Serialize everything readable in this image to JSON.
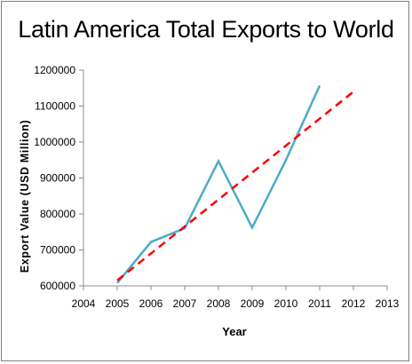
{
  "chart_data": {
    "type": "line",
    "title": "Latin America Total Exports to World",
    "xlabel": "Year",
    "ylabel": "Export Value (USD Million)",
    "xlim": [
      2004,
      2013
    ],
    "ylim": [
      600000,
      1200000
    ],
    "x_ticks": [
      "2004",
      "2005",
      "2006",
      "2007",
      "2008",
      "2009",
      "2010",
      "2011",
      "2012",
      "2013"
    ],
    "y_ticks": [
      "600000",
      "700000",
      "800000",
      "900000",
      "1000000",
      "1100000",
      "1200000"
    ],
    "grid": false,
    "legend": "none",
    "series": [
      {
        "kind": "data",
        "color": "#4bacc6",
        "x": [
          2005,
          2006,
          2007,
          2008,
          2009,
          2010,
          2011
        ],
        "values": [
          608000,
          722000,
          760000,
          947000,
          762000,
          950000,
          1157000
        ]
      },
      {
        "kind": "trendline",
        "style": "dashed",
        "color": "#ff0000",
        "x": [
          2005,
          2012
        ],
        "values": [
          615000,
          1140000
        ]
      }
    ]
  }
}
